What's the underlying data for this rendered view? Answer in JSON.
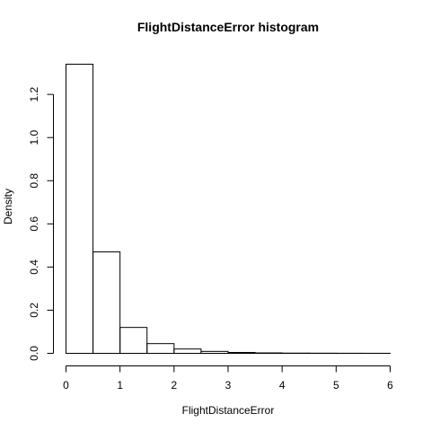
{
  "chart_data": {
    "type": "bar",
    "title": "FlightDistanceError  histogram",
    "xlabel": "FlightDistanceError",
    "ylabel": "Density",
    "xlim": [
      0,
      6
    ],
    "ylim": [
      0,
      1.34
    ],
    "grid": false,
    "bin_edges": [
      0,
      0.5,
      1,
      1.5,
      2,
      2.5,
      3,
      3.5,
      4,
      4.5,
      5,
      5.5,
      6
    ],
    "values": [
      1.34,
      0.47,
      0.12,
      0.045,
      0.02,
      0.009,
      0.004,
      0.002,
      0.001,
      0.0007,
      0.0004,
      0.0002
    ],
    "x_ticks": [
      0,
      1,
      2,
      3,
      4,
      5,
      6
    ],
    "x_tick_labels": [
      "0",
      "1",
      "2",
      "3",
      "4",
      "5",
      "6"
    ],
    "y_ticks": [
      0,
      0.2,
      0.4,
      0.6,
      0.8,
      1.0,
      1.2
    ],
    "y_tick_labels": [
      "0.0",
      "0.2",
      "0.4",
      "0.6",
      "0.8",
      "1.0",
      "1.2"
    ]
  }
}
